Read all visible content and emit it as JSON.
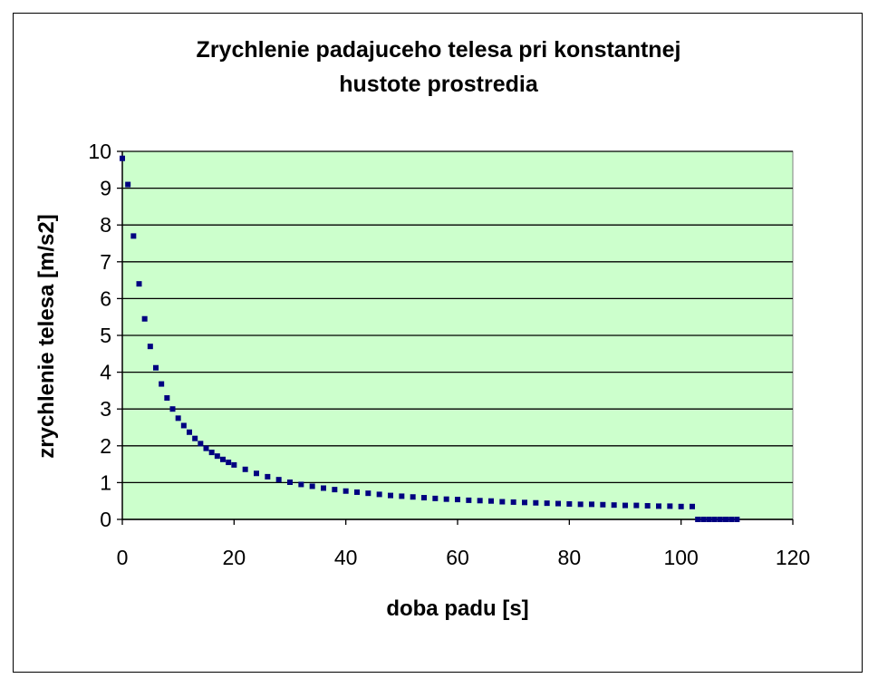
{
  "chart_data": {
    "type": "scatter",
    "title_lines": [
      "Zrychlenie padajuceho telesa pri konstantnej",
      "hustote prostredia"
    ],
    "xlabel": "doba padu [s]",
    "ylabel": "zrychlenie telesa [m/s2]",
    "xlim": [
      0,
      120
    ],
    "ylim": [
      0,
      10
    ],
    "xticks": [
      "0",
      "20",
      "40",
      "60",
      "80",
      "100",
      "120"
    ],
    "yticks": [
      "0",
      "1",
      "2",
      "3",
      "4",
      "5",
      "6",
      "7",
      "8",
      "9",
      "10"
    ],
    "grid": true,
    "legend": "none",
    "colors": {
      "plot_bg": "#ccffcc",
      "marker": "#000080",
      "grid": "#000000"
    },
    "series": [
      {
        "x": [
          0,
          1,
          2,
          3,
          4,
          5,
          6,
          7,
          8,
          9,
          10,
          11,
          12,
          13,
          14,
          15,
          16,
          17,
          18,
          19,
          20,
          22,
          24,
          26,
          28,
          30,
          32,
          34,
          36,
          38,
          40,
          42,
          44,
          46,
          48,
          50,
          52,
          54,
          56,
          58,
          60,
          62,
          64,
          66,
          68,
          70,
          72,
          74,
          76,
          78,
          80,
          82,
          84,
          86,
          88,
          90,
          92,
          94,
          96,
          98,
          100,
          102,
          103,
          104,
          105,
          106,
          107,
          108,
          109,
          110
        ],
        "y": [
          9.81,
          9.1,
          7.7,
          6.4,
          5.45,
          4.7,
          4.12,
          3.68,
          3.3,
          3.0,
          2.75,
          2.55,
          2.37,
          2.2,
          2.06,
          1.93,
          1.82,
          1.72,
          1.63,
          1.55,
          1.48,
          1.36,
          1.25,
          1.16,
          1.08,
          1.01,
          0.95,
          0.9,
          0.85,
          0.81,
          0.77,
          0.74,
          0.71,
          0.68,
          0.65,
          0.63,
          0.61,
          0.59,
          0.57,
          0.55,
          0.54,
          0.52,
          0.51,
          0.5,
          0.48,
          0.47,
          0.46,
          0.45,
          0.44,
          0.43,
          0.42,
          0.41,
          0.41,
          0.4,
          0.39,
          0.38,
          0.38,
          0.37,
          0.36,
          0.36,
          0.35,
          0.35,
          0,
          0,
          0,
          0,
          0,
          0,
          0,
          0
        ]
      }
    ]
  }
}
